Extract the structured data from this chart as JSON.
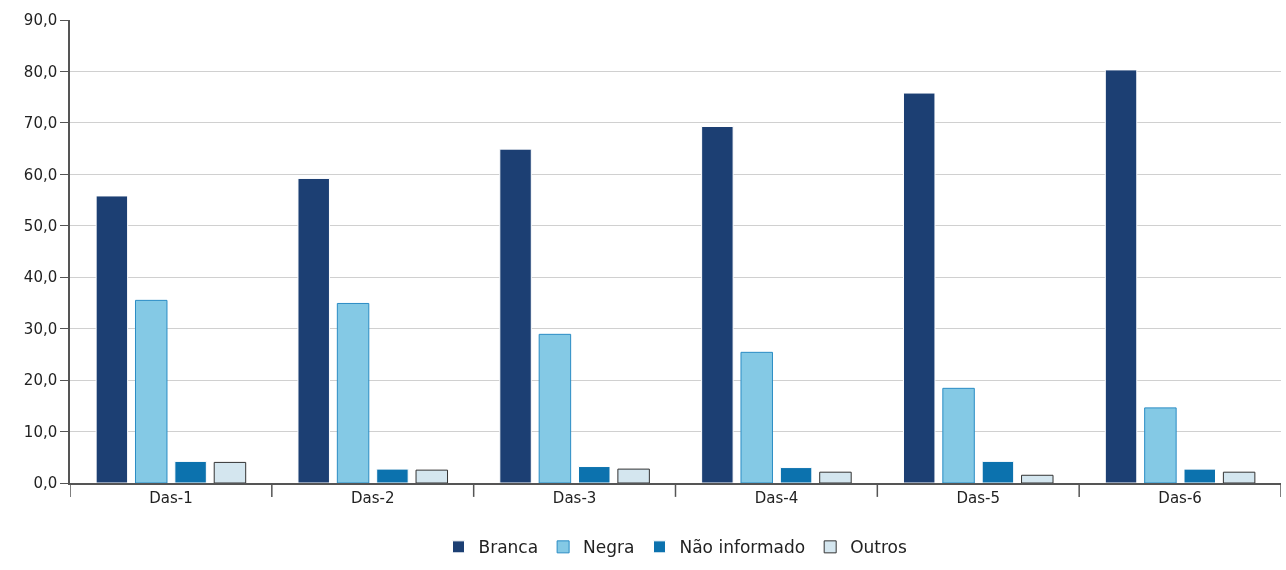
{
  "chart_data": {
    "type": "bar",
    "categories": [
      "Das-1",
      "Das-2",
      "Das-3",
      "Das-4",
      "Das-5",
      "Das-6"
    ],
    "series": [
      {
        "name": "Branca",
        "color": "#1c3f73",
        "values": [
          55.8,
          59.2,
          64.9,
          69.3,
          75.8,
          80.3
        ]
      },
      {
        "name": "Negra",
        "color": "#84c9e5",
        "values": [
          35.5,
          34.9,
          28.9,
          25.4,
          18.4,
          14.6
        ]
      },
      {
        "name": "Não informado",
        "color": "#0c72ae",
        "values": [
          4.2,
          2.7,
          3.2,
          3.0,
          4.2,
          2.7
        ]
      },
      {
        "name": "Outros",
        "color": "#d4e6ef",
        "values": [
          4.0,
          2.5,
          2.7,
          2.1,
          1.5,
          2.1
        ]
      }
    ],
    "ylim": [
      0,
      90
    ],
    "yticks": [
      {
        "value": 0,
        "label": "0,0"
      },
      {
        "value": 10,
        "label": "10,0"
      },
      {
        "value": 20,
        "label": "20,0"
      },
      {
        "value": 30,
        "label": "30,0"
      },
      {
        "value": 40,
        "label": "40,0"
      },
      {
        "value": 50,
        "label": "50,0"
      },
      {
        "value": 60,
        "label": "60,0"
      },
      {
        "value": 70,
        "label": "70,0"
      },
      {
        "value": 80,
        "label": "80,0"
      },
      {
        "value": 90,
        "label": "90,0"
      }
    ],
    "grid": "y",
    "legend": "bottom"
  }
}
